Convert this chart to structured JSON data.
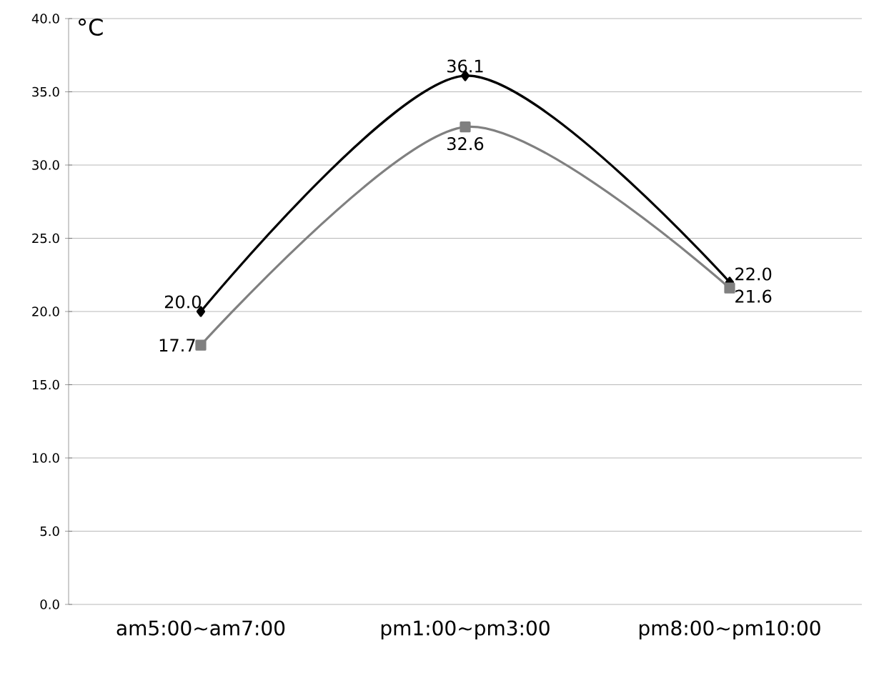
{
  "chart_data": {
    "type": "line",
    "ylabel": "°C",
    "categories": [
      "am5:00~am7:00",
      "pm1:00~pm3:00",
      "pm8:00~pm10:00"
    ],
    "series": [
      {
        "color": "#000000",
        "values": [
          20.0,
          36.1,
          22.0
        ],
        "value_labels": [
          "20.0",
          "36.1",
          "22.0"
        ],
        "marker": "diamond"
      },
      {
        "color": "#808080",
        "values": [
          17.7,
          32.6,
          21.6
        ],
        "value_labels": [
          "17.7",
          "32.6",
          "21.6"
        ],
        "marker": "square"
      }
    ],
    "ylim": [
      0,
      40
    ],
    "yticks": [
      {
        "value": 0,
        "label": "0.0"
      },
      {
        "value": 5,
        "label": "5.0"
      },
      {
        "value": 10,
        "label": "10.0"
      },
      {
        "value": 15,
        "label": "15.0"
      },
      {
        "value": 20,
        "label": "20.0"
      },
      {
        "value": 25,
        "label": "25.0"
      },
      {
        "value": 30,
        "label": "30.0"
      },
      {
        "value": 35,
        "label": "35.0"
      },
      {
        "value": 40,
        "label": "40.0"
      }
    ],
    "grid": "y",
    "line_style": "solid"
  }
}
